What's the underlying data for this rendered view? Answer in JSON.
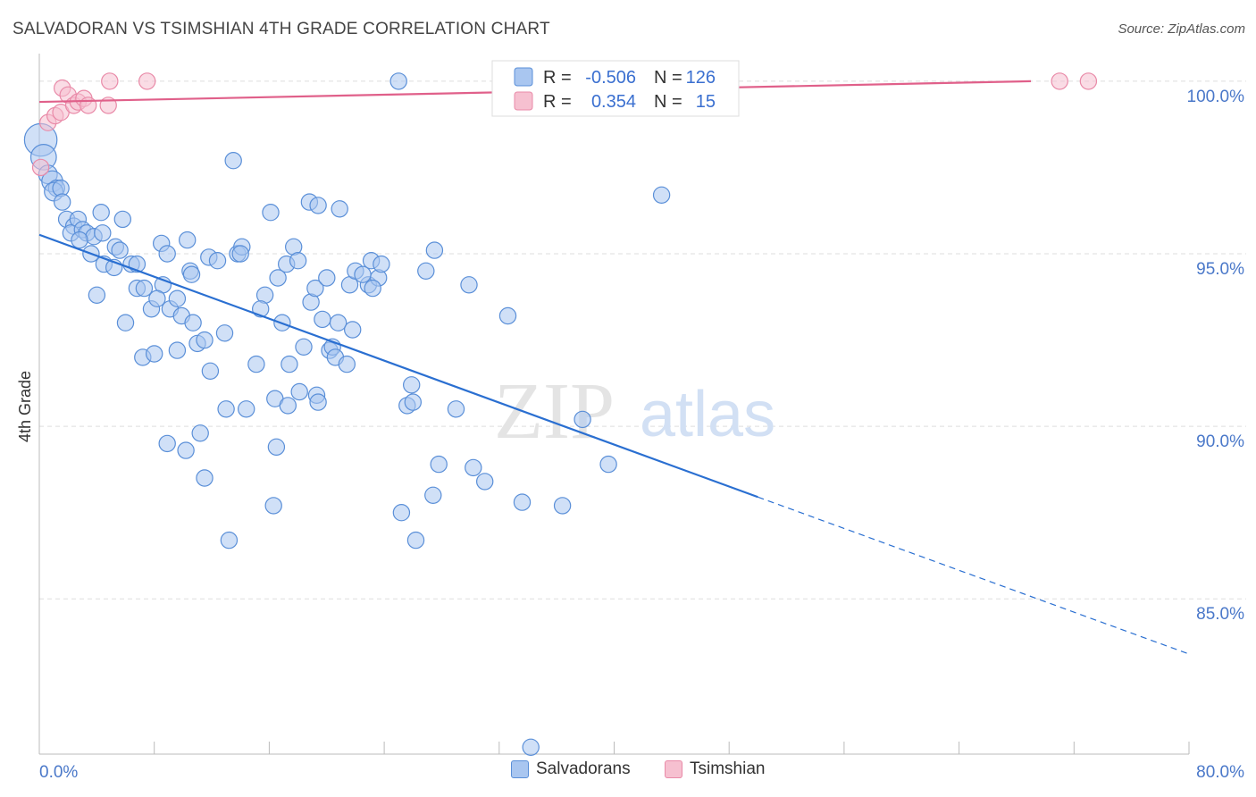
{
  "title": "SALVADORAN VS TSIMSHIAN 4TH GRADE CORRELATION CHART",
  "source": "Source: ZipAtlas.com",
  "watermark": {
    "zip": "ZIP",
    "atlas": "atlas"
  },
  "colors": {
    "blue_fill": "#a9c6f0",
    "blue_stroke": "#5a8fd8",
    "blue_line": "#2a6fd1",
    "pink_fill": "#f6c0d0",
    "pink_stroke": "#e98aa8",
    "pink_line": "#e0608a",
    "tick_label": "#4a78c9",
    "grid": "#dddddd"
  },
  "legend": {
    "rows": [
      {
        "r_label": "R =",
        "r_value": "-0.506",
        "n_label": "N =",
        "n_value": "126"
      },
      {
        "r_label": "R =",
        "r_value": "0.354",
        "n_label": "N =",
        "n_value": "15"
      }
    ]
  },
  "bottom_legend": {
    "salvadorans": "Salvadorans",
    "tsimshian": "Tsimshian"
  },
  "chart_data": {
    "type": "scatter",
    "title": "SALVADORAN VS TSIMSHIAN 4TH GRADE CORRELATION CHART",
    "xlabel": "",
    "ylabel": "4th Grade",
    "xlim": [
      0,
      80
    ],
    "ylim": [
      80.5,
      100.8
    ],
    "x_tick_labels": [
      "0.0%",
      "80.0%"
    ],
    "y_ticks": [
      85,
      90,
      95,
      100
    ],
    "y_tick_labels": [
      "85.0%",
      "90.0%",
      "95.0%",
      "100.0%"
    ],
    "grid": true,
    "legend_position": "top-center",
    "series": [
      {
        "name": "Salvadorans",
        "r": -0.506,
        "n": 126,
        "trend": {
          "x0": 0,
          "y0": 95.55,
          "x1": 50,
          "y1": 87.95,
          "x_dash_end": 80,
          "y_dash_end": 83.4
        },
        "points": [
          [
            0.1,
            98.3,
            14
          ],
          [
            0.3,
            97.8,
            11
          ],
          [
            0.6,
            97.3,
            8
          ],
          [
            0.9,
            97.1,
            9
          ],
          [
            1.2,
            96.9,
            7
          ],
          [
            1.0,
            96.8,
            8
          ],
          [
            1.5,
            96.9,
            7
          ],
          [
            1.6,
            96.5,
            7
          ],
          [
            1.9,
            96.0,
            7
          ],
          [
            2.4,
            95.8,
            7
          ],
          [
            2.7,
            96.0,
            7
          ],
          [
            2.2,
            95.6,
            7
          ],
          [
            3.0,
            95.7,
            7
          ],
          [
            3.3,
            95.6,
            7
          ],
          [
            3.8,
            95.5,
            7
          ],
          [
            2.8,
            95.4,
            7
          ],
          [
            4.4,
            95.6,
            7
          ],
          [
            4.3,
            96.2,
            7
          ],
          [
            5.8,
            96.0,
            7
          ],
          [
            3.6,
            95.0,
            7
          ],
          [
            5.3,
            95.2,
            7
          ],
          [
            5.6,
            95.1,
            7
          ],
          [
            4.5,
            94.7,
            7
          ],
          [
            5.2,
            94.6,
            7
          ],
          [
            6.4,
            94.7,
            7
          ],
          [
            6.8,
            94.7,
            7
          ],
          [
            8.5,
            95.3,
            7
          ],
          [
            8.9,
            95.0,
            7
          ],
          [
            10.3,
            95.4,
            7
          ],
          [
            11.8,
            94.9,
            7
          ],
          [
            12.4,
            94.8,
            7
          ],
          [
            13.8,
            95.0,
            7
          ],
          [
            14.1,
            95.2,
            7
          ],
          [
            16.1,
            96.2,
            7
          ],
          [
            14.0,
            95.0,
            7
          ],
          [
            17.2,
            94.7,
            7
          ],
          [
            17.7,
            95.2,
            7
          ],
          [
            18.0,
            94.8,
            7
          ],
          [
            18.8,
            96.5,
            7
          ],
          [
            19.4,
            96.4,
            7
          ],
          [
            20.9,
            96.3,
            7
          ],
          [
            10.5,
            94.5,
            7
          ],
          [
            10.6,
            94.4,
            7
          ],
          [
            15.7,
            93.8,
            7
          ],
          [
            15.4,
            93.4,
            7
          ],
          [
            6.8,
            94.0,
            7
          ],
          [
            7.3,
            94.0,
            7
          ],
          [
            8.6,
            94.1,
            7
          ],
          [
            4.0,
            93.8,
            7
          ],
          [
            6.0,
            93.0,
            7
          ],
          [
            7.8,
            93.4,
            7
          ],
          [
            8.2,
            93.7,
            7
          ],
          [
            9.1,
            93.4,
            7
          ],
          [
            9.9,
            93.2,
            7
          ],
          [
            9.6,
            93.7,
            7
          ],
          [
            10.7,
            93.0,
            7
          ],
          [
            11.0,
            92.4,
            7
          ],
          [
            11.5,
            92.5,
            7
          ],
          [
            12.9,
            92.7,
            7
          ],
          [
            7.2,
            92.0,
            7
          ],
          [
            8.0,
            92.1,
            7
          ],
          [
            9.6,
            92.2,
            7
          ],
          [
            11.9,
            91.6,
            7
          ],
          [
            15.1,
            91.8,
            7
          ],
          [
            16.6,
            94.3,
            7
          ],
          [
            16.9,
            93.0,
            7
          ],
          [
            17.4,
            91.8,
            7
          ],
          [
            18.1,
            91.0,
            7
          ],
          [
            18.9,
            93.6,
            7
          ],
          [
            19.2,
            94.0,
            7
          ],
          [
            18.4,
            92.3,
            7
          ],
          [
            19.7,
            93.1,
            7
          ],
          [
            20.2,
            92.2,
            7
          ],
          [
            20.4,
            92.3,
            7
          ],
          [
            20.6,
            92.0,
            7
          ],
          [
            20.8,
            93.0,
            7
          ],
          [
            21.4,
            91.8,
            7
          ],
          [
            21.8,
            92.8,
            7
          ],
          [
            20.0,
            94.3,
            7
          ],
          [
            21.6,
            94.1,
            7
          ],
          [
            22.0,
            94.5,
            7
          ],
          [
            22.9,
            94.1,
            7
          ],
          [
            23.6,
            94.3,
            7
          ],
          [
            23.1,
            94.8,
            7
          ],
          [
            23.8,
            94.7,
            7
          ],
          [
            22.5,
            94.4,
            7
          ],
          [
            23.2,
            94.0,
            7
          ],
          [
            26.9,
            94.5,
            7
          ],
          [
            27.5,
            95.1,
            7
          ],
          [
            29.9,
            94.1,
            7
          ],
          [
            32.6,
            93.2,
            7
          ],
          [
            43.3,
            96.7,
            7
          ],
          [
            13.0,
            90.5,
            7
          ],
          [
            14.4,
            90.5,
            7
          ],
          [
            16.4,
            90.8,
            7
          ],
          [
            17.3,
            90.6,
            7
          ],
          [
            19.3,
            90.9,
            7
          ],
          [
            19.4,
            90.7,
            7
          ],
          [
            25.6,
            90.6,
            7
          ],
          [
            25.9,
            91.2,
            7
          ],
          [
            26.0,
            90.7,
            7
          ],
          [
            29.0,
            90.5,
            7
          ],
          [
            37.8,
            90.2,
            7
          ],
          [
            11.2,
            89.8,
            7
          ],
          [
            8.9,
            89.5,
            7
          ],
          [
            10.2,
            89.3,
            7
          ],
          [
            16.5,
            89.4,
            7
          ],
          [
            11.5,
            88.5,
            7
          ],
          [
            27.8,
            88.9,
            7
          ],
          [
            30.2,
            88.8,
            7
          ],
          [
            31.0,
            88.4,
            7
          ],
          [
            39.6,
            88.9,
            7
          ],
          [
            16.3,
            87.7,
            7
          ],
          [
            25.2,
            87.5,
            7
          ],
          [
            27.4,
            88.0,
            7
          ],
          [
            33.6,
            87.8,
            7
          ],
          [
            36.4,
            87.7,
            7
          ],
          [
            13.2,
            86.7,
            7
          ],
          [
            26.2,
            86.7,
            7
          ],
          [
            13.5,
            97.7,
            7
          ],
          [
            25.0,
            100.0,
            7
          ],
          [
            34.2,
            80.7,
            7
          ]
        ]
      },
      {
        "name": "Tsimshian",
        "r": 0.354,
        "n": 15,
        "trend": {
          "x0": 0,
          "y0": 99.4,
          "x1": 69,
          "y1": 100.0
        },
        "points": [
          [
            0.1,
            97.5,
            7
          ],
          [
            0.6,
            98.8,
            7
          ],
          [
            1.1,
            99.0,
            7
          ],
          [
            1.5,
            99.1,
            7
          ],
          [
            1.6,
            99.8,
            7
          ],
          [
            2.0,
            99.6,
            7
          ],
          [
            2.4,
            99.3,
            7
          ],
          [
            2.7,
            99.4,
            7
          ],
          [
            3.1,
            99.5,
            7
          ],
          [
            3.4,
            99.3,
            7
          ],
          [
            4.8,
            99.3,
            7
          ],
          [
            4.9,
            100.0,
            7
          ],
          [
            7.5,
            100.0,
            7
          ],
          [
            71.0,
            100.0,
            7
          ],
          [
            73.0,
            100.0,
            7
          ]
        ]
      }
    ]
  }
}
